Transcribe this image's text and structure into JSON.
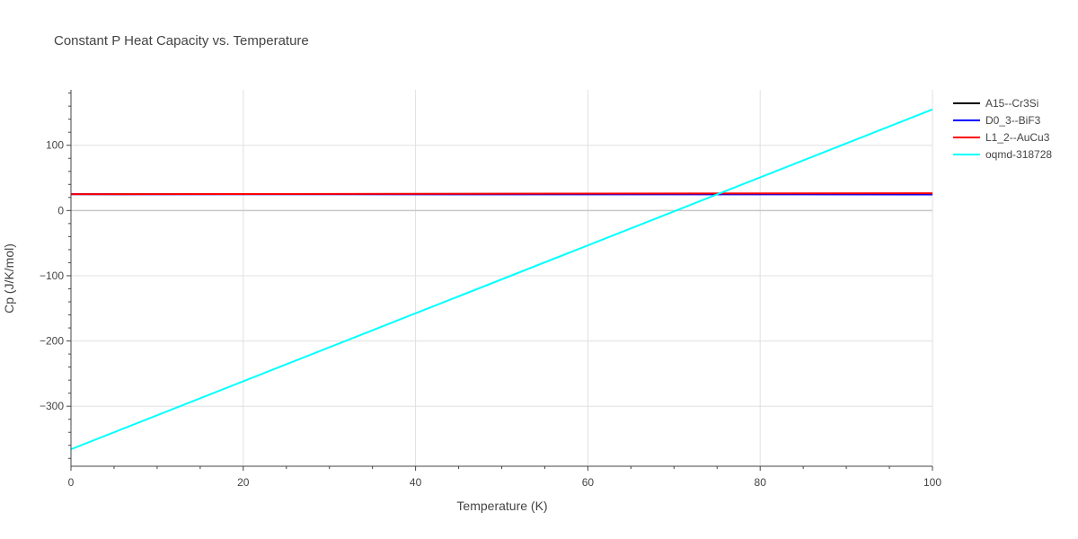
{
  "chart_data": {
    "type": "line",
    "title": "Constant P Heat Capacity vs. Temperature",
    "xlabel": "Temperature (K)",
    "ylabel": "Cp (J/K/mol)",
    "xlim": [
      0,
      100
    ],
    "ylim": [
      -392,
      185
    ],
    "x_ticks": [
      0,
      20,
      40,
      60,
      80,
      100
    ],
    "y_ticks": [
      -300,
      -200,
      -100,
      0,
      100
    ],
    "grid": true,
    "legend": "top-right",
    "series": [
      {
        "name": "A15--Cr3Si",
        "color": "#000000",
        "x": [
          0,
          100
        ],
        "y": [
          25,
          26
        ]
      },
      {
        "name": "D0_3--BiF3",
        "color": "#0000ff",
        "x": [
          0,
          100
        ],
        "y": [
          25,
          24.6
        ]
      },
      {
        "name": "L1_2--AuCu3",
        "color": "#ff0000",
        "x": [
          0,
          100
        ],
        "y": [
          25,
          26.5
        ]
      },
      {
        "name": "oqmd-318728",
        "color": "#00ffff",
        "x": [
          0,
          100
        ],
        "y": [
          -366,
          155
        ]
      }
    ]
  }
}
